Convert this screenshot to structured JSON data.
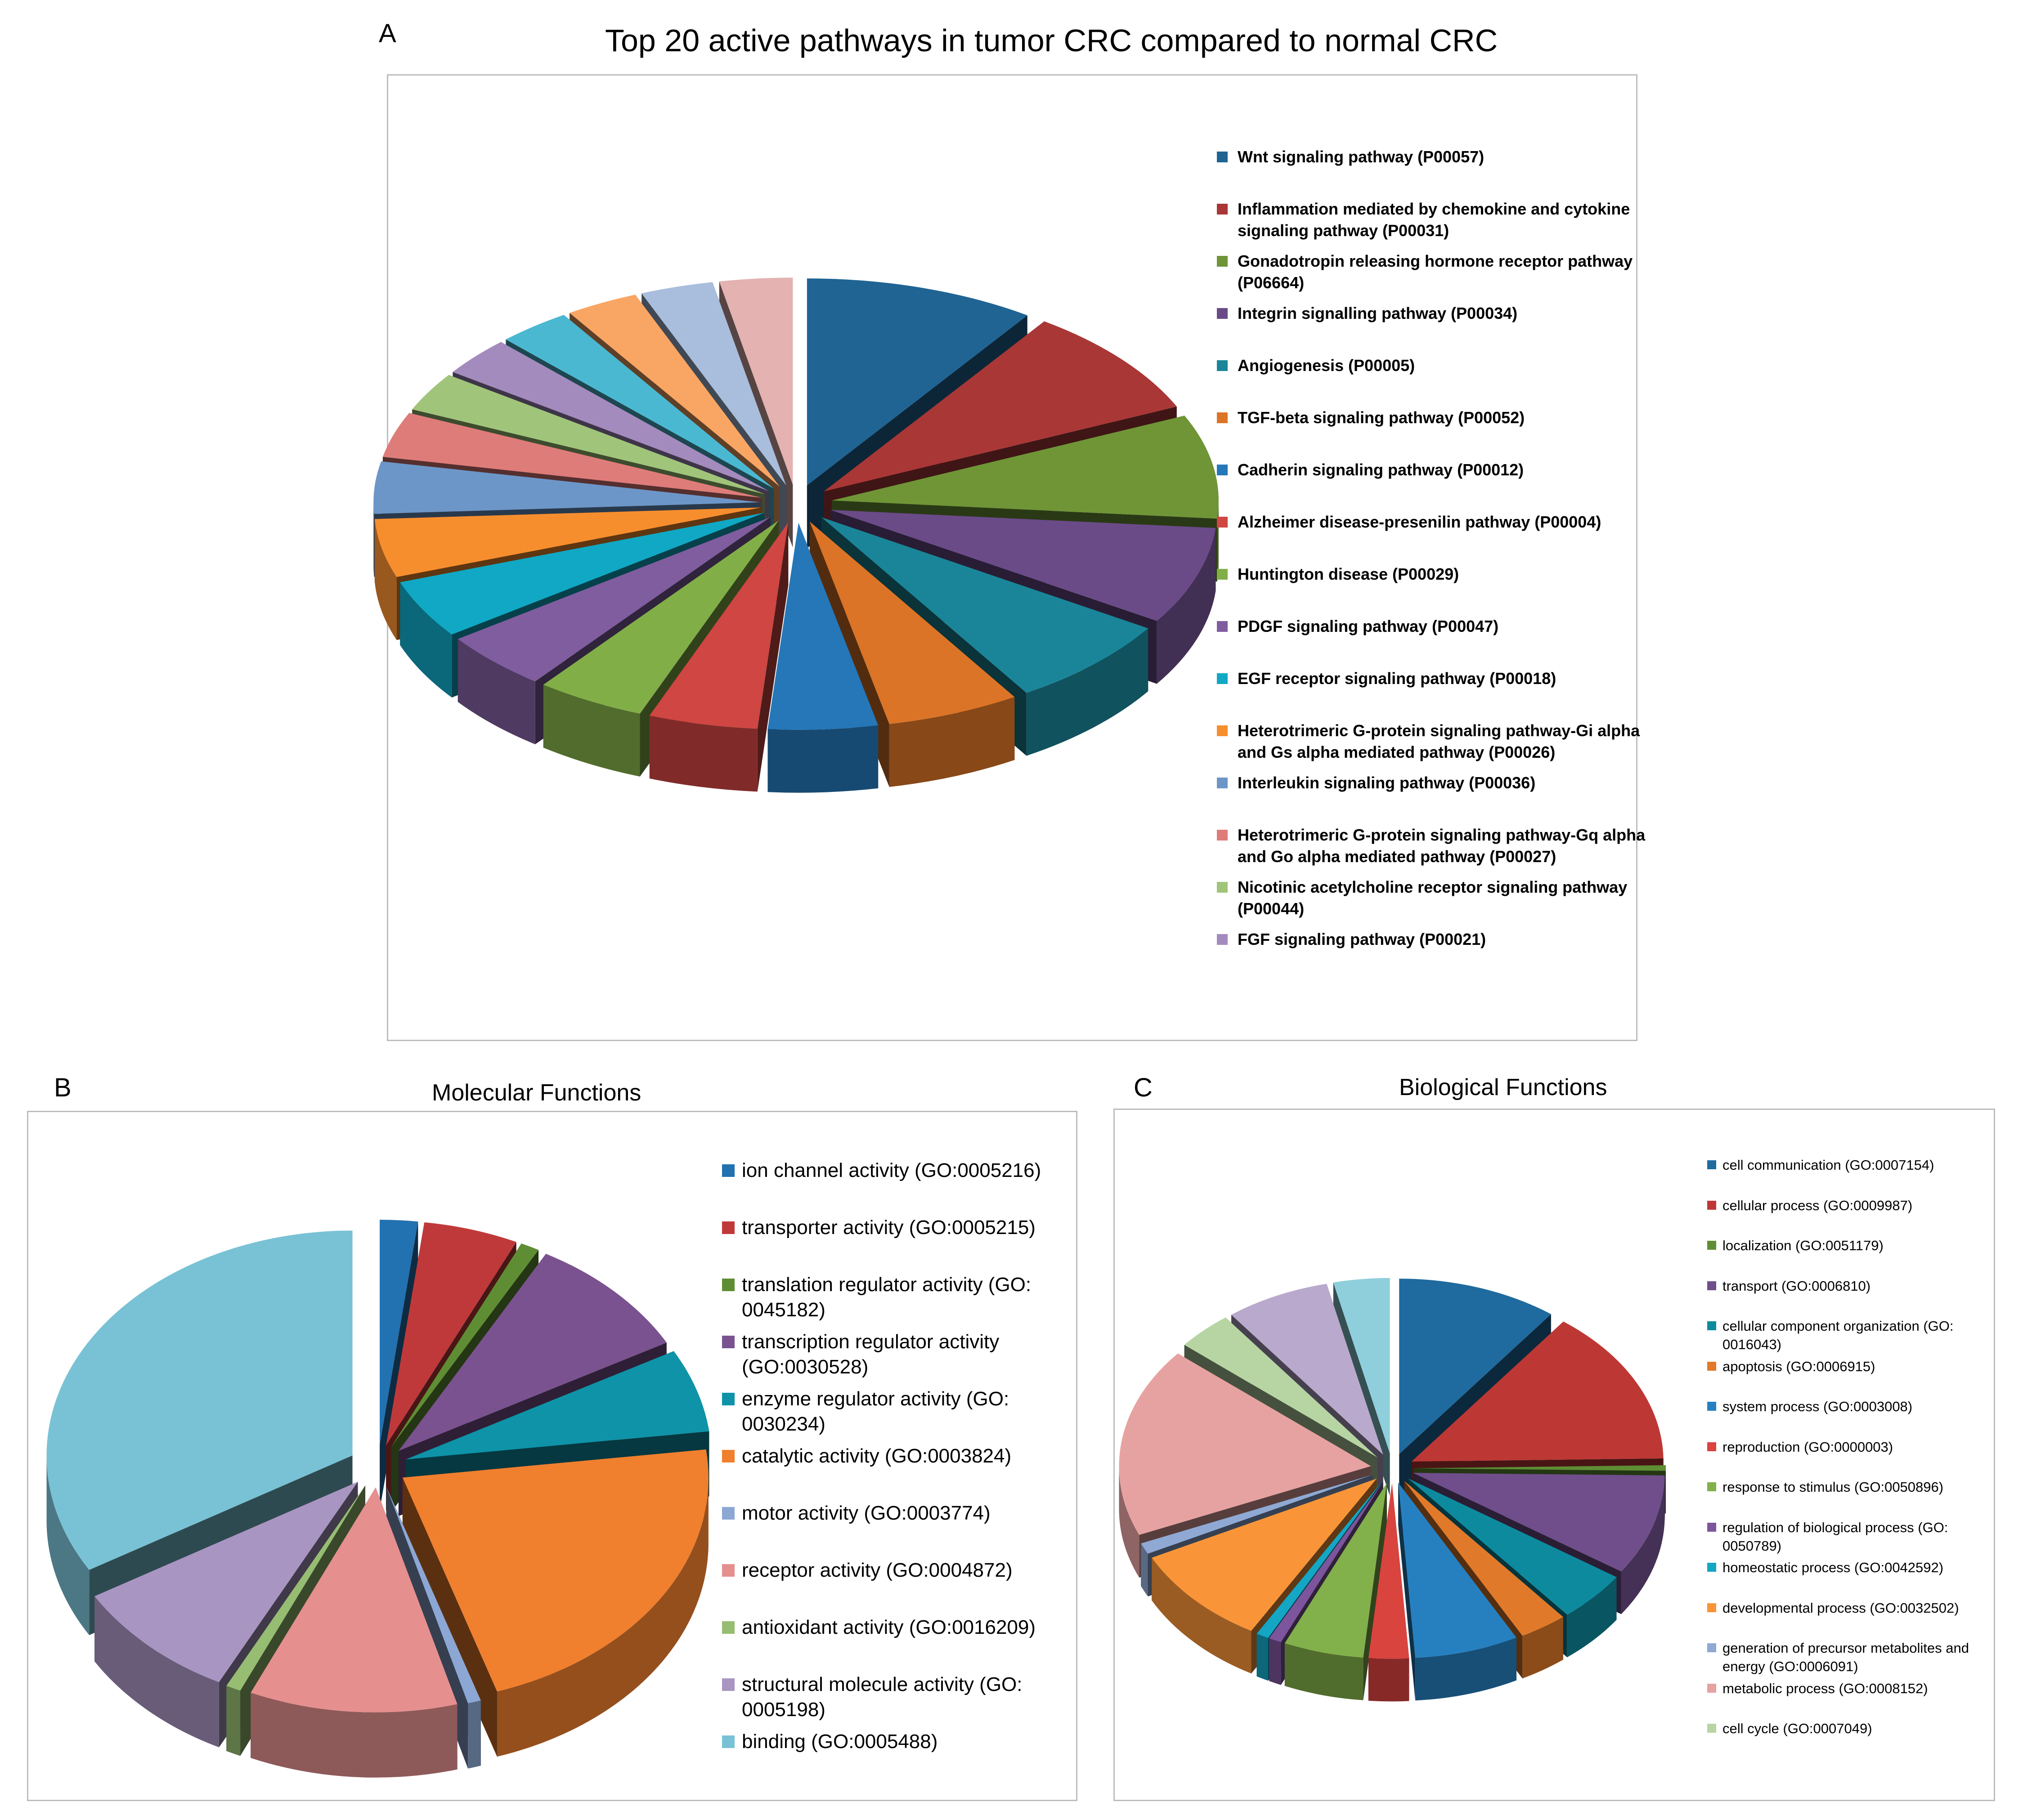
{
  "panel_labels": {
    "a": "A",
    "b": "B",
    "c": "C"
  },
  "chart_data": [
    {
      "id": "A",
      "type": "pie",
      "title": "Top 20 active pathways in tumor CRC compared to normal CRC",
      "note": "Exploded 3D pie; 20 slices, 16 listed in legend. Values estimated as percent of total.",
      "slices": [
        {
          "label": "Wnt signaling pathway (P00057)",
          "value": 9.5,
          "color": "#1F6493"
        },
        {
          "label": "Inflammation mediated by chemokine and cytokine signaling pathway (P00031)",
          "value": 8.5,
          "color": "#A93736"
        },
        {
          "label": "Gonadotropin releasing hormone receptor pathway (P06664)",
          "value": 8.0,
          "color": "#6F9537"
        },
        {
          "label": "Integrin signalling pathway (P00034)",
          "value": 7.5,
          "color": "#6A4B88"
        },
        {
          "label": "Angiogenesis (P00005)",
          "value": 7.0,
          "color": "#1A8598"
        },
        {
          "label": "TGF-beta signaling pathway (P00052)",
          "value": 5.5,
          "color": "#DB7427"
        },
        {
          "label": "Cadherin signaling pathway (P00012)",
          "value": 4.5,
          "color": "#2577B8"
        },
        {
          "label": "Alzheimer disease-presenilin pathway (P00004)",
          "value": 4.5,
          "color": "#CF4642"
        },
        {
          "label": "Huntington disease (P00029)",
          "value": 4.5,
          "color": "#82AE48"
        },
        {
          "label": "PDGF signaling pathway (P00047)",
          "value": 4.5,
          "color": "#7F5D9E"
        },
        {
          "label": "EGF receptor signaling pathway (P00018)",
          "value": 4.5,
          "color": "#10A8C4"
        },
        {
          "label": "Heterotrimeric G-protein signaling pathway-Gi alpha and Gs alpha mediated pathway (P00026)",
          "value": 4.5,
          "color": "#F78E2E"
        },
        {
          "label": "Interleukin signaling pathway (P00036)",
          "value": 4.0,
          "color": "#6D96C8"
        },
        {
          "label": "Heterotrimeric G-protein signaling pathway-Gq alpha and Go alpha mediated pathway (P00027)",
          "value": 3.5,
          "color": "#DE7C7A"
        },
        {
          "label": "Nicotinic acetylcholine receptor signaling pathway (P00044)",
          "value": 3.0,
          "color": "#A0C57A"
        },
        {
          "label": "FGF signaling pathway (P00021)",
          "value": 3.0,
          "color": "#A48BBE"
        },
        {
          "label": "",
          "value": 3.0,
          "color": "#4BB8D2"
        },
        {
          "label": "",
          "value": 3.0,
          "color": "#F9A664"
        },
        {
          "label": "",
          "value": 3.0,
          "color": "#A9BDDC"
        },
        {
          "label": "",
          "value": 3.0,
          "color": "#E3B2B1"
        }
      ]
    },
    {
      "id": "B",
      "type": "pie",
      "title": "Molecular Functions",
      "note": "Exploded 3D pie. Values estimated as percent of total.",
      "slices": [
        {
          "label": "ion channel activity (GO:0005216)",
          "value": 2.0,
          "color": "#2271B0"
        },
        {
          "label": "transporter activity (GO:0005215)",
          "value": 5.0,
          "color": "#C0393A"
        },
        {
          "label": "translation regulator activity (GO: 0045182)",
          "value": 1.0,
          "color": "#5F8D34"
        },
        {
          "label": "transcription regulator activity (GO:0030528)",
          "value": 9.0,
          "color": "#7A528F"
        },
        {
          "label": "enzyme regulator activity (GO: 0030234)",
          "value": 6.0,
          "color": "#0E93A8"
        },
        {
          "label": "catalytic activity (GO:0003824)",
          "value": 22.0,
          "color": "#F07F2E"
        },
        {
          "label": "motor activity (GO:0003774)",
          "value": 0.7,
          "color": "#8CA7D3"
        },
        {
          "label": "receptor activity (GO:0004872)",
          "value": 11.0,
          "color": "#E58F8F"
        },
        {
          "label": "antioxidant activity (GO:0016209)",
          "value": 0.8,
          "color": "#96BD72"
        },
        {
          "label": "structural molecule activity (GO: 0005198)",
          "value": 9.0,
          "color": "#A995C2"
        },
        {
          "label": "binding (GO:0005488)",
          "value": 33.5,
          "color": "#79C2D5"
        }
      ]
    },
    {
      "id": "C",
      "type": "pie",
      "title": "Biological Functions",
      "note": "Exploded 3D pie. Values estimated as percent of total.",
      "slices": [
        {
          "label": "cell communication (GO:0007154)",
          "value": 10.0,
          "color": "#1F6A9E"
        },
        {
          "label": "cellular process (GO:0009987)",
          "value": 14.0,
          "color": "#BD3835"
        },
        {
          "label": "localization (GO:0051179)",
          "value": 0.5,
          "color": "#5F8D34"
        },
        {
          "label": "transport (GO:0006810)",
          "value": 9.0,
          "color": "#6F4E8B"
        },
        {
          "label": "cellular component organization (GO: 0016043)",
          "value": 4.5,
          "color": "#0E8A9E"
        },
        {
          "label": "apoptosis (GO:0006915)",
          "value": 3.0,
          "color": "#E07A2A"
        },
        {
          "label": "system process (GO:0003008)",
          "value": 6.5,
          "color": "#2680C0"
        },
        {
          "label": "reproduction (GO:0000003)",
          "value": 2.5,
          "color": "#D9443F"
        },
        {
          "label": "response to stimulus (GO:0050896)",
          "value": 5.0,
          "color": "#82B04A"
        },
        {
          "label": "regulation of biological process (GO: 0050789)",
          "value": 0.8,
          "color": "#7D559C"
        },
        {
          "label": "homeostatic process (GO:0042592)",
          "value": 0.8,
          "color": "#14A6C4"
        },
        {
          "label": "developmental process (GO:0032502)",
          "value": 9.0,
          "color": "#F99538"
        },
        {
          "label": "generation of precursor metabolites and energy (GO:0006091)",
          "value": 1.0,
          "color": "#8FA9D4"
        },
        {
          "label": "metabolic process (GO:0008152)",
          "value": 17.0,
          "color": "#E6A2A1"
        },
        {
          "label": "cell cycle (GO:0007049)",
          "value": 3.5,
          "color": "#B6D5A3"
        },
        {
          "label": "",
          "value": 6.5,
          "color": "#B9A9CC"
        },
        {
          "label": "",
          "value": 3.5,
          "color": "#8ECFDB"
        }
      ]
    }
  ]
}
